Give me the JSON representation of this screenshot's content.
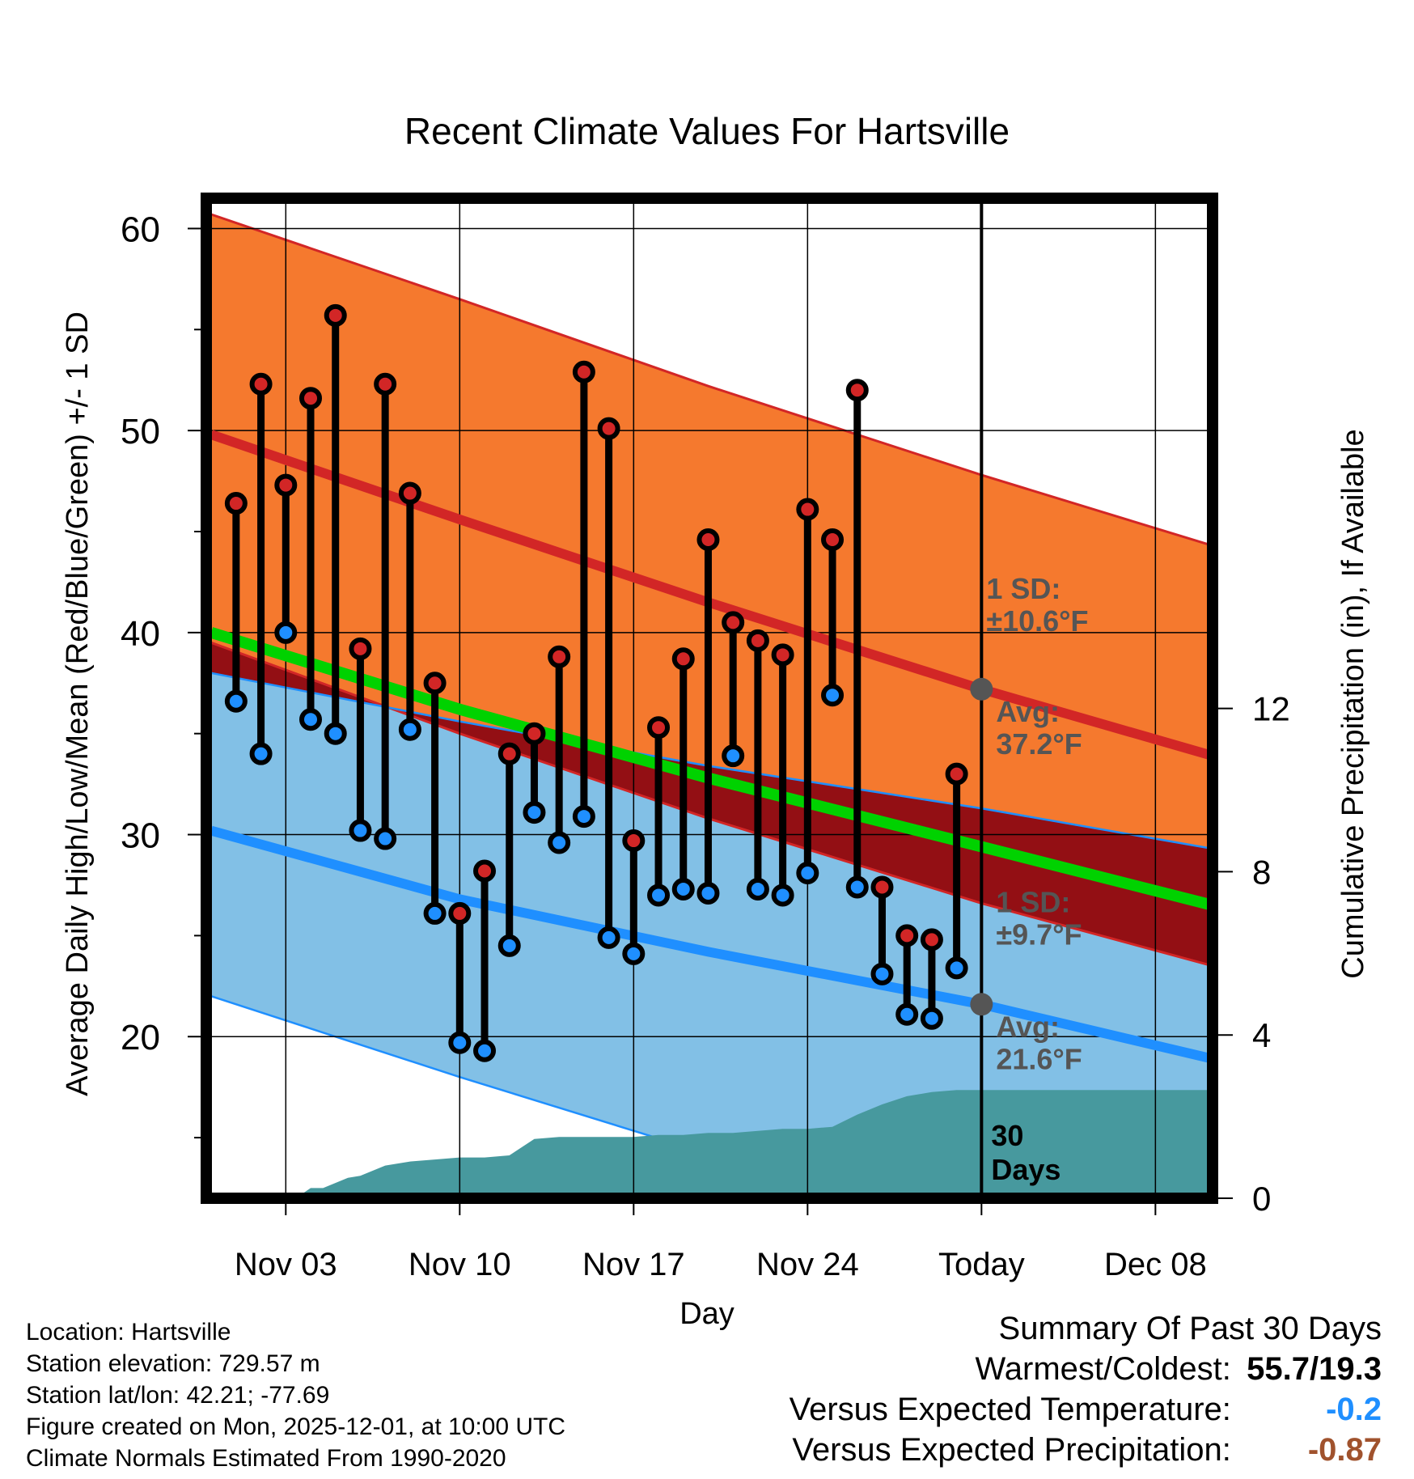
{
  "chart_data": {
    "type": "line",
    "title": "Recent Climate Values For Hartsville",
    "xlabel": "Day",
    "ylabel_left": "Average Daily High/Low/Mean (Red/Blue/Green) +/- 1 SD",
    "ylabel_right": "Cumulative Precipitation (in), If Available",
    "x_tick_labels": [
      "Nov 03",
      "Nov 10",
      "Nov 17",
      "Nov 24",
      "Today",
      "Dec 08"
    ],
    "x_tick_days": [
      3,
      10,
      17,
      24,
      31,
      38
    ],
    "xlim": [
      -0.2,
      40.3
    ],
    "today_day": 31,
    "ylim_left": [
      12,
      61.5
    ],
    "y_ticks_left": [
      20,
      30,
      40,
      50,
      60
    ],
    "y_minor_left": [
      15,
      25,
      35,
      45,
      55
    ],
    "ylim_right": [
      0,
      24.5
    ],
    "y_ticks_right": [
      0,
      4,
      8,
      12
    ],
    "normal_high_days": [
      0,
      10,
      20,
      31,
      40.3
    ],
    "normal_high_avg": [
      49.8,
      45.6,
      41.5,
      37.2,
      33.9
    ],
    "normal_high_upper": [
      60.7,
      56.5,
      52.2,
      47.8,
      44.3
    ],
    "normal_high_lower": [
      39.5,
      35.0,
      30.8,
      26.6,
      23.5
    ],
    "normal_low_days": [
      0,
      10,
      20,
      31,
      40.3
    ],
    "normal_low_avg": [
      30.2,
      26.8,
      24.2,
      21.6,
      18.9
    ],
    "normal_low_upper": [
      38.0,
      35.6,
      33.4,
      31.3,
      29.3
    ],
    "normal_low_lower": [
      22.0,
      18.0,
      14.2,
      11.6,
      9.5
    ],
    "normal_mean_days": [
      0,
      10,
      20,
      31,
      40.3
    ],
    "normal_mean_avg": [
      40.0,
      36.2,
      32.8,
      29.4,
      26.5
    ],
    "days": [
      1,
      2,
      3,
      4,
      5,
      6,
      7,
      8,
      9,
      10,
      11,
      12,
      13,
      14,
      15,
      16,
      17,
      18,
      19,
      20,
      21,
      22,
      23,
      24,
      25,
      26,
      27,
      28,
      29,
      30
    ],
    "highs": [
      46.4,
      52.3,
      47.3,
      51.6,
      55.7,
      39.2,
      52.3,
      46.9,
      37.5,
      26.1,
      28.2,
      34.0,
      35.0,
      38.8,
      52.9,
      50.1,
      29.7,
      35.3,
      38.7,
      44.6,
      40.5,
      39.6,
      38.9,
      46.1,
      44.6,
      52.0,
      27.4,
      25.0,
      24.8,
      33.0
    ],
    "lows": [
      36.6,
      34.0,
      40.0,
      35.7,
      35.0,
      30.2,
      29.8,
      35.2,
      26.1,
      19.7,
      19.3,
      24.5,
      31.1,
      29.6,
      30.9,
      24.9,
      24.1,
      27.0,
      27.3,
      27.1,
      33.9,
      27.3,
      27.0,
      28.1,
      36.9,
      27.4,
      23.1,
      21.1,
      20.9,
      23.4
    ],
    "precip_days": [
      0,
      3.4,
      4.0,
      4.5,
      5.5,
      6.0,
      7.0,
      8.0,
      9.0,
      10.0,
      11.0,
      12.0,
      13.0,
      14.0,
      15.0,
      16.0,
      17.0,
      18.0,
      19.0,
      20.0,
      21.0,
      22.0,
      23.0,
      24.0,
      25.0,
      26.0,
      27.0,
      28.0,
      29.0,
      30.0,
      31.0,
      40.3
    ],
    "cum_precip": [
      0,
      0,
      0.25,
      0.25,
      0.5,
      0.55,
      0.8,
      0.9,
      0.95,
      1.0,
      1.0,
      1.05,
      1.45,
      1.5,
      1.5,
      1.5,
      1.5,
      1.55,
      1.55,
      1.6,
      1.6,
      1.65,
      1.7,
      1.7,
      1.75,
      2.05,
      2.3,
      2.5,
      2.6,
      2.65,
      2.65,
      2.65
    ],
    "annotations": {
      "high_sd": "1 SD:",
      "high_sd_value": "±10.6°F",
      "high_avg": "Avg:",
      "high_avg_value": "37.2°F",
      "low_sd": "1 SD:",
      "low_sd_value": "±9.7°F",
      "low_avg": "Avg:",
      "low_avg_value": "21.6°F",
      "period_line1": "30",
      "period_line2": "Days"
    },
    "colors": {
      "high_band": "#f5792e",
      "high_line": "#d22626",
      "low_band": "#82c0e6",
      "low_line": "#1f8fff",
      "mean_line": "#00d200",
      "overlap_band": "#930f14",
      "precip": "#47999e",
      "high_marker": "#d22626",
      "low_marker": "#1f8fff",
      "annotation": "#555555"
    }
  },
  "info": {
    "location": "Location: Hartsville",
    "elevation": "Station elevation: 729.57 m",
    "latlon": "Station lat/lon: 42.21; -77.69",
    "created": "Figure created on Mon, 2025-12-01, at 10:00 UTC",
    "normals": "Climate Normals Estimated From 1990-2020"
  },
  "summary": {
    "title": "Summary Of Past 30 Days",
    "warmest_label": "Warmest/Coldest:",
    "warmest_value": "55.7/19.3",
    "temp_label": "Versus Expected Temperature:",
    "temp_value": "-0.2",
    "temp_color": "#1f8fff",
    "precip_label": "Versus Expected Precipitation:",
    "precip_value": "-0.87",
    "precip_color": "#a0522d"
  }
}
